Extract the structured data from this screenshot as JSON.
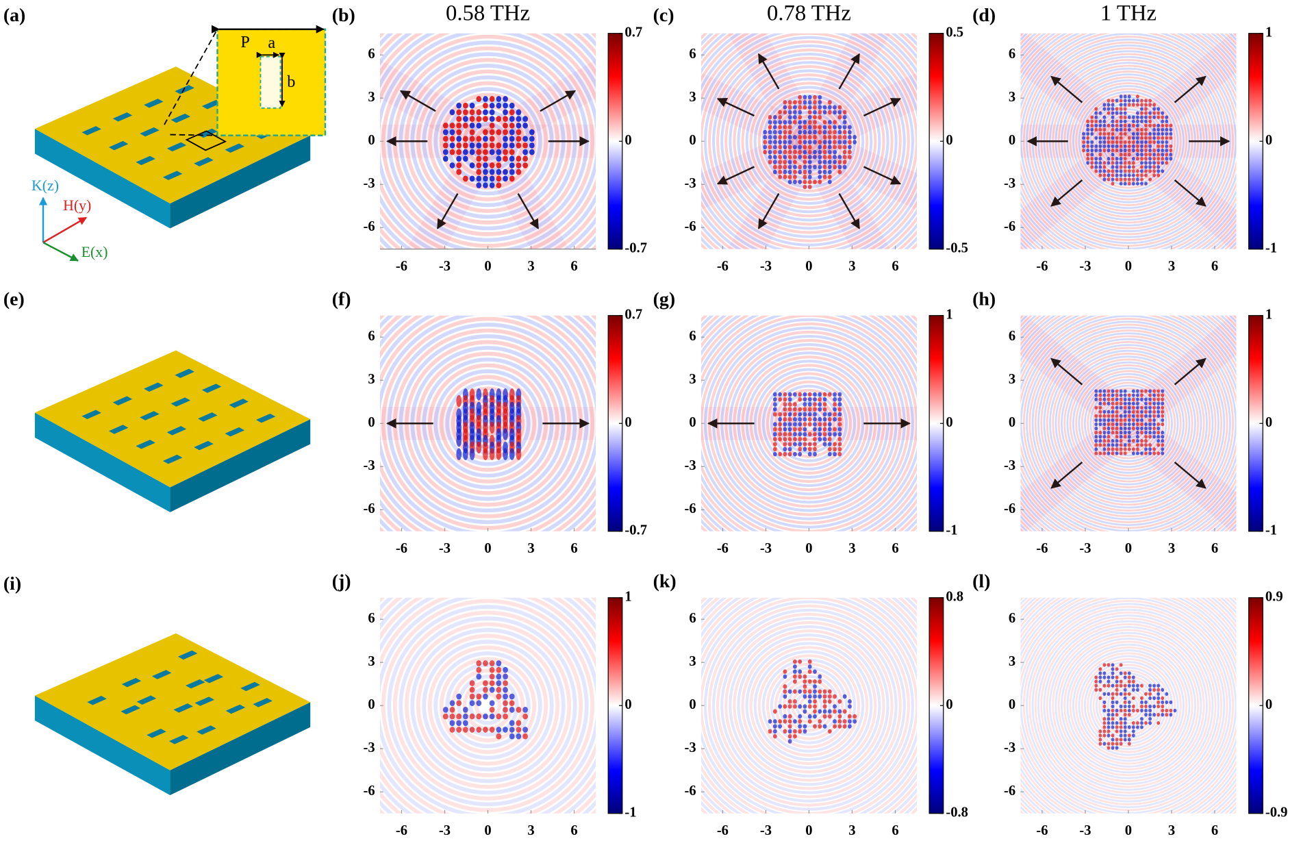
{
  "schematics": [
    {
      "label": "(a)"
    },
    {
      "label": "(e)"
    },
    {
      "label": "(i)"
    }
  ],
  "inset": {
    "period_label": "P",
    "width_label": "a",
    "length_label": "b"
  },
  "axes_labels": {
    "z": "K(z)",
    "y": "H(y)",
    "x": "E(x)"
  },
  "column_titles": [
    "0.58 THz",
    "0.78 THz",
    "1 THz"
  ],
  "map_axes": {
    "xlim": [
      -7.5,
      7.5
    ],
    "ylim": [
      -7.5,
      7.5
    ],
    "xticks": [
      -6,
      -3,
      0,
      3,
      6
    ],
    "yticks": [
      -6,
      -3,
      0,
      3,
      6
    ]
  },
  "maps": [
    {
      "label": "(b)",
      "clim": [
        -0.7,
        0.7
      ],
      "colorbar_ticks": [
        -0.7,
        0,
        0.7
      ]
    },
    {
      "label": "(c)",
      "clim": [
        -0.5,
        0.5
      ],
      "colorbar_ticks": [
        -0.5,
        0,
        0.5
      ]
    },
    {
      "label": "(d)",
      "clim": [
        -1,
        1
      ],
      "colorbar_ticks": [
        -1,
        0,
        1
      ]
    },
    {
      "label": "(f)",
      "clim": [
        -0.7,
        0.7
      ],
      "colorbar_ticks": [
        -0.7,
        0,
        0.7
      ]
    },
    {
      "label": "(g)",
      "clim": [
        -1,
        1
      ],
      "colorbar_ticks": [
        -1,
        0,
        1
      ]
    },
    {
      "label": "(h)",
      "clim": [
        -1,
        1
      ],
      "colorbar_ticks": [
        -1,
        0,
        1
      ]
    },
    {
      "label": "(j)",
      "clim": [
        -1,
        1
      ],
      "colorbar_ticks": [
        -1,
        0,
        1
      ]
    },
    {
      "label": "(k)",
      "clim": [
        -0.8,
        0.8
      ],
      "colorbar_ticks": [
        -0.8,
        0,
        0.8
      ]
    },
    {
      "label": "(l)",
      "clim": [
        -0.9,
        0.9
      ],
      "colorbar_ticks": [
        -0.9,
        0,
        0.9
      ]
    }
  ]
}
